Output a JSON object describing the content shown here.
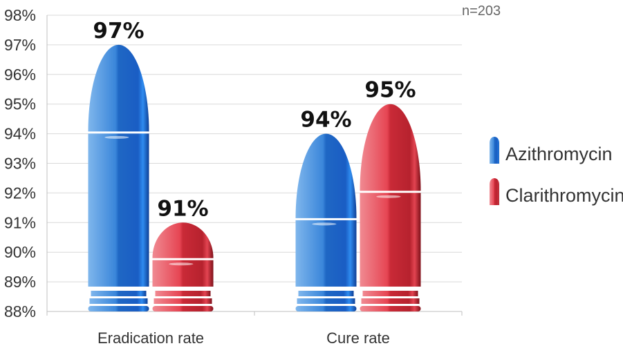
{
  "chart_data": {
    "type": "bar",
    "categories": [
      "Eradication rate",
      "Cure rate"
    ],
    "series": [
      {
        "name": "Azithromycin",
        "values": [
          97,
          94
        ],
        "labels": [
          "97%",
          "94%"
        ],
        "color": "#1e6fd0"
      },
      {
        "name": "Clarithromycin",
        "values": [
          91,
          95
        ],
        "labels": [
          "91%",
          "95%"
        ],
        "color": "#d9323f"
      }
    ],
    "title": "",
    "xlabel": "",
    "ylabel": "",
    "ylim": [
      88,
      98
    ],
    "yticks": [
      "88%",
      "89%",
      "90%",
      "91%",
      "92%",
      "93%",
      "94%",
      "95%",
      "96%",
      "97%",
      "98%"
    ],
    "grid": true,
    "legend": "right",
    "bar_style": "bullet",
    "annotation": "n=203"
  }
}
